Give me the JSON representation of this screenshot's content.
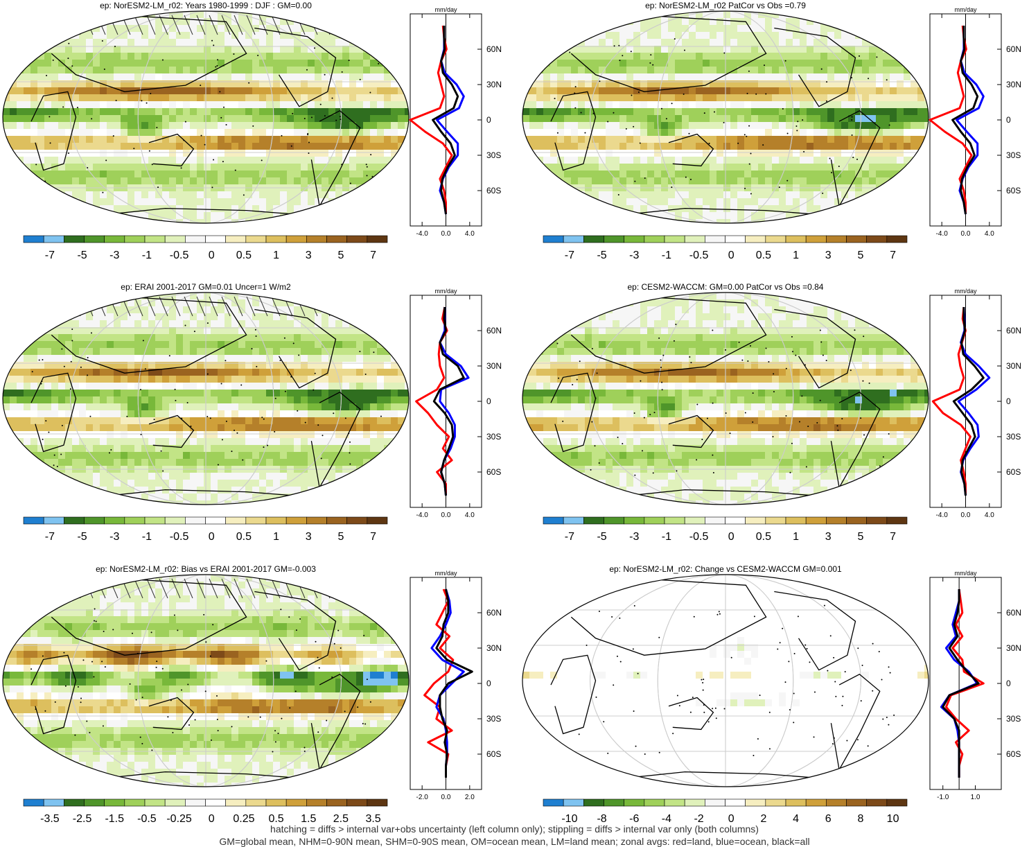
{
  "footer": {
    "line1": "hatching = diffs > internal var+obs uncertainty (left column only); stippling = diffs > internal var only (both columns)",
    "line2": "GM=global mean, NHM=0-90N mean, SHM=0-90S mean, OM=ocean mean, LM=land mean; zonal avgs: red=land, blue=ocean, black=all"
  },
  "colors": {
    "palette": [
      "#1f7fd0",
      "#7fc3f0",
      "#2f6e1f",
      "#4f952a",
      "#78b83a",
      "#9fd05a",
      "#c2e486",
      "#e0f1bb",
      "#f6f6f6",
      "#ffffff",
      "#f6eec0",
      "#ebd98e",
      "#ddbf5e",
      "#cfa03a",
      "#b5802a",
      "#9a6320",
      "#7d4a19",
      "#5e3612"
    ],
    "land_line": "#ff0000",
    "ocean_line": "#0000ff",
    "all_line": "#000000"
  },
  "chart_data": [
    {
      "type": "heatmap",
      "title": "ep: NorESM2-LM_r02: Years 1980-1999 : DJF : GM=0.00",
      "colorbar_labels": [
        "-7",
        "-5",
        "-3",
        "-1",
        "-0.5",
        "0",
        "0.5",
        "1",
        "3",
        "5",
        "7"
      ],
      "zonal": {
        "unit": "mm/day",
        "xticks": [
          "-4.0",
          "0.0",
          "4.0"
        ],
        "xlim": [
          -6,
          6
        ],
        "yticks": [
          "60N",
          "30N",
          "0",
          "30S",
          "60S"
        ],
        "lat": [
          80,
          70,
          60,
          50,
          40,
          30,
          20,
          10,
          0,
          -10,
          -20,
          -30,
          -40,
          -50,
          -60,
          -70,
          -80
        ],
        "land": [
          -0.5,
          -0.3,
          0.1,
          -0.8,
          -1.3,
          -0.8,
          -0.3,
          -1.0,
          -6.0,
          -3.5,
          -0.5,
          1.0,
          0.0,
          -1.0,
          -0.3,
          0.0,
          0.0
        ],
        "ocean": [
          -0.3,
          -0.3,
          -0.3,
          -0.8,
          -0.2,
          1.8,
          3.0,
          2.2,
          -1.5,
          0.2,
          2.0,
          2.0,
          0.5,
          -0.5,
          -1.0,
          -0.3,
          0.0
        ],
        "all": [
          -0.3,
          -0.3,
          -0.2,
          -0.8,
          -0.5,
          1.0,
          2.0,
          1.3,
          -2.2,
          -0.8,
          0.8,
          1.5,
          0.3,
          -0.6,
          -0.8,
          -0.3,
          0.0
        ]
      }
    },
    {
      "type": "heatmap",
      "title": "ep: NorESM2-LM_r02 PatCor vs Obs =0.79",
      "colorbar_labels": [
        "-7",
        "-5",
        "-3",
        "-1",
        "-0.5",
        "0",
        "0.5",
        "1",
        "3",
        "5",
        "7"
      ],
      "zonal": {
        "unit": "mm/day",
        "xticks": [
          "-4.0",
          "0.0",
          "4.0"
        ],
        "xlim": [
          -6,
          6
        ],
        "yticks": [
          "60N",
          "30N",
          "0",
          "30S",
          "60S"
        ],
        "lat": [
          80,
          70,
          60,
          50,
          40,
          30,
          20,
          10,
          0,
          -10,
          -20,
          -30,
          -40,
          -50,
          -60,
          -70,
          -80
        ],
        "land": [
          -0.5,
          -0.3,
          0.1,
          -0.8,
          -1.3,
          -0.8,
          -0.3,
          -1.0,
          -6.0,
          -3.5,
          -0.5,
          1.0,
          0.0,
          -1.0,
          -0.3,
          0.0,
          0.0
        ],
        "ocean": [
          -0.3,
          -0.3,
          -0.3,
          -0.8,
          -0.2,
          1.8,
          3.0,
          2.2,
          -1.5,
          0.2,
          2.0,
          2.0,
          0.5,
          -0.5,
          -1.0,
          -0.3,
          0.0
        ],
        "all": [
          -0.3,
          -0.3,
          -0.2,
          -0.8,
          -0.5,
          1.0,
          2.0,
          1.3,
          -2.2,
          -0.8,
          0.8,
          1.5,
          0.3,
          -0.6,
          -0.8,
          -0.3,
          0.0
        ]
      }
    },
    {
      "type": "heatmap",
      "title": "ep: ERAI 2001-2017 GM=0.01 Uncer=1 W/m2",
      "colorbar_labels": [
        "-7",
        "-5",
        "-3",
        "-1",
        "-0.5",
        "0",
        "0.5",
        "1",
        "3",
        "5",
        "7"
      ],
      "zonal": {
        "unit": "mm/day",
        "xticks": [
          "-4.0",
          "0.0",
          "4.0"
        ],
        "xlim": [
          -6,
          6
        ],
        "yticks": [
          "60N",
          "30N",
          "0",
          "30S",
          "60S"
        ],
        "lat": [
          80,
          70,
          60,
          50,
          40,
          30,
          20,
          10,
          0,
          -10,
          -20,
          -30,
          -40,
          -50,
          -60,
          -70,
          -80
        ],
        "land": [
          -0.2,
          -0.6,
          0.2,
          -1.0,
          -1.2,
          -1.0,
          -0.3,
          -1.5,
          -5.0,
          -3.0,
          -1.5,
          0.5,
          -0.5,
          1.0,
          -1.5,
          0.0,
          0.0
        ],
        "ocean": [
          -0.2,
          -0.2,
          -0.2,
          -1.0,
          0.0,
          2.5,
          3.8,
          -0.8,
          -1.0,
          0.5,
          1.5,
          1.5,
          0.8,
          -0.3,
          -0.8,
          -0.2,
          0.0
        ],
        "all": [
          -0.2,
          -0.3,
          0.0,
          -1.0,
          -0.5,
          2.0,
          3.0,
          -1.0,
          -2.0,
          -0.2,
          1.0,
          1.2,
          0.5,
          -0.3,
          -0.8,
          -0.2,
          0.0
        ]
      }
    },
    {
      "type": "heatmap",
      "title": "ep: CESM2-WACCM: GM=0.00 PatCor vs Obs =0.84",
      "colorbar_labels": [
        "-7",
        "-5",
        "-3",
        "-1",
        "-0.5",
        "0",
        "0.5",
        "1",
        "3",
        "5",
        "7"
      ],
      "zonal": {
        "unit": "mm/day",
        "xticks": [
          "-4.0",
          "0.0",
          "4.0"
        ],
        "xlim": [
          -6,
          6
        ],
        "yticks": [
          "60N",
          "30N",
          "0",
          "30S",
          "60S"
        ],
        "lat": [
          80,
          70,
          60,
          50,
          40,
          30,
          20,
          10,
          0,
          -10,
          -20,
          -30,
          -40,
          -50,
          -60,
          -70,
          -80
        ],
        "land": [
          -0.3,
          -0.5,
          0.0,
          -0.6,
          -1.2,
          -0.9,
          -0.3,
          -1.0,
          -5.5,
          -3.8,
          -0.8,
          0.8,
          0.0,
          -0.8,
          -0.3,
          0.0,
          0.0
        ],
        "ocean": [
          -0.3,
          -0.2,
          -0.2,
          -0.8,
          0.0,
          2.2,
          4.0,
          1.8,
          -1.2,
          0.5,
          2.0,
          2.2,
          0.8,
          -0.4,
          -0.8,
          -0.2,
          0.0
        ],
        "all": [
          -0.3,
          -0.3,
          -0.1,
          -0.7,
          -0.4,
          1.5,
          3.0,
          1.0,
          -2.0,
          -0.5,
          1.0,
          1.6,
          0.5,
          -0.5,
          -0.7,
          -0.2,
          0.0
        ]
      }
    },
    {
      "type": "heatmap",
      "title": "ep: NorESM2-LM_r02: Bias vs ERAI 2001-2017 GM=-0.003",
      "colorbar_labels": [
        "-3.5",
        "-2.5",
        "-1.5",
        "-0.5",
        "-0.25",
        "0",
        "0.25",
        "0.5",
        "1.5",
        "2.5",
        "3.5"
      ],
      "zonal": {
        "unit": "mm/day",
        "xticks": [
          "-2.0",
          "0.0",
          "2.0"
        ],
        "xlim": [
          -3,
          3
        ],
        "yticks": [
          "60N",
          "30N",
          "0",
          "30S",
          "60S"
        ],
        "lat": [
          80,
          70,
          60,
          50,
          40,
          30,
          20,
          10,
          0,
          -10,
          -20,
          -30,
          -40,
          -50,
          -60,
          -70,
          -80
        ],
        "land": [
          -0.2,
          0.2,
          -0.3,
          -0.8,
          0.3,
          -0.5,
          0.6,
          0.2,
          -1.0,
          -1.8,
          -0.5,
          -0.8,
          0.5,
          -1.5,
          0.2,
          0.0,
          0.0
        ],
        "ocean": [
          0.0,
          0.3,
          0.4,
          0.0,
          -0.5,
          -1.2,
          -0.3,
          1.5,
          0.5,
          -0.5,
          -0.8,
          -0.2,
          0.0,
          0.1,
          0.1,
          0.0,
          0.0
        ],
        "all": [
          0.0,
          0.2,
          0.2,
          -0.2,
          -0.3,
          -0.8,
          0.1,
          2.2,
          0.2,
          -0.5,
          -0.5,
          -0.3,
          0.1,
          -0.1,
          0.1,
          0.0,
          0.0
        ]
      }
    },
    {
      "type": "heatmap",
      "title": "ep: NorESM2-LM_r02: Change vs CESM2-WACCM GM=0.001",
      "colorbar_labels": [
        "-10",
        "-8",
        "-6",
        "-4",
        "-2",
        "0",
        "2",
        "4",
        "6",
        "8",
        "10"
      ],
      "zonal": {
        "unit": "mm/day",
        "xticks": [
          "-1.0",
          "1.0"
        ],
        "xtick_values": [
          -1.0,
          1.0
        ],
        "xlim": [
          -1.8,
          2.6
        ],
        "yticks": [
          "60N",
          "30N",
          "0",
          "30S",
          "60S"
        ],
        "lat": [
          80,
          70,
          60,
          50,
          40,
          30,
          20,
          10,
          0,
          -10,
          -20,
          -30,
          -40,
          -50,
          -60,
          -70,
          -80
        ],
        "land": [
          0.0,
          0.1,
          0.2,
          -0.2,
          0.2,
          -0.4,
          0.2,
          0.3,
          1.5,
          -0.5,
          -0.8,
          -0.2,
          0.6,
          -0.2,
          0.2,
          0.0,
          0.0
        ],
        "ocean": [
          0.0,
          0.0,
          -0.2,
          -0.4,
          -0.2,
          -0.8,
          -0.3,
          0.6,
          1.1,
          -0.6,
          -1.1,
          -0.3,
          -0.1,
          0.0,
          0.0,
          0.0,
          0.0
        ],
        "all": [
          0.0,
          0.0,
          -0.1,
          -0.3,
          -0.1,
          -0.6,
          -0.1,
          0.5,
          1.2,
          -0.6,
          -1.0,
          -0.3,
          0.0,
          0.0,
          0.0,
          0.0,
          0.0
        ]
      }
    }
  ]
}
